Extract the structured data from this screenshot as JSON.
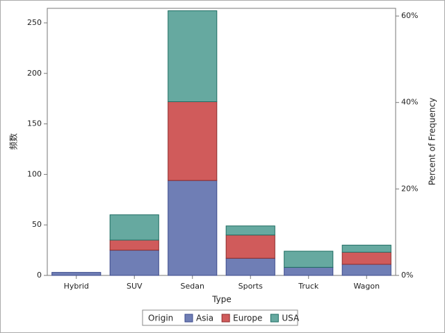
{
  "chart_data": {
    "type": "bar",
    "stacked": true,
    "x_label": "Type",
    "y_label": "频数",
    "y2_label": "Percent of Frequency",
    "legend_title": "Origin",
    "legend_position": "bottom",
    "categories": [
      "Hybrid",
      "SUV",
      "Sedan",
      "Sports",
      "Truck",
      "Wagon"
    ],
    "series": [
      {
        "name": "Asia",
        "color": "#6f7eb5",
        "edge": "#3b4a8c",
        "values": [
          3,
          25,
          94,
          17,
          8,
          11
        ]
      },
      {
        "name": "Europe",
        "color": "#d05b5b",
        "edge": "#8c2b2b",
        "values": [
          0,
          10,
          78,
          23,
          0,
          12
        ]
      },
      {
        "name": "USA",
        "color": "#66a9a0",
        "edge": "#1f6e63",
        "values": [
          0,
          25,
          90,
          9,
          16,
          7
        ]
      }
    ],
    "ylim": [
      0,
      264.4
    ],
    "yticks": [
      0,
      50,
      100,
      150,
      200,
      250
    ],
    "y2lim": [
      0,
      61.78
    ],
    "y2ticks": [
      {
        "value": 0,
        "label": "0%"
      },
      {
        "value": 20,
        "label": "20%"
      },
      {
        "value": 40,
        "label": "40%"
      },
      {
        "value": 60,
        "label": "60%"
      }
    ]
  }
}
